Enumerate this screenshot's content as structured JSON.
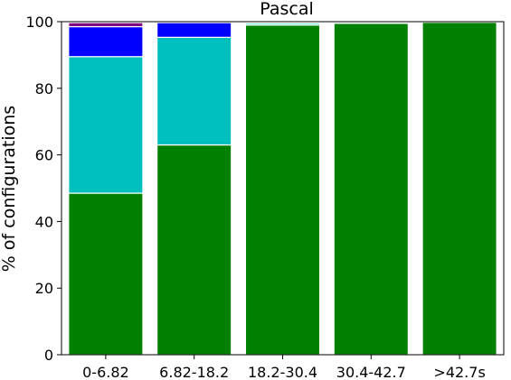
{
  "chart_data": {
    "type": "bar",
    "stacked": true,
    "title": "Pascal",
    "ylabel": "% of configurations",
    "xlabel": "",
    "ylim": [
      0,
      100
    ],
    "yticks": [
      0,
      20,
      40,
      60,
      80,
      100
    ],
    "grid": false,
    "categories": [
      "0-6.82",
      "6.82-18.2",
      "18.2-30.4",
      "30.4-42.7",
      ">42.7s"
    ],
    "series": [
      {
        "color": "#008000",
        "values": [
          48.5,
          63,
          99,
          99.5,
          99.8
        ]
      },
      {
        "color": "#00bfbf",
        "values": [
          41,
          32.3,
          0.5,
          0.2,
          0
        ]
      },
      {
        "color": "#0000ff",
        "values": [
          9,
          4.4,
          0.3,
          0,
          0
        ]
      },
      {
        "color": "#800080",
        "values": [
          1.2,
          0,
          0,
          0,
          0
        ]
      }
    ]
  }
}
